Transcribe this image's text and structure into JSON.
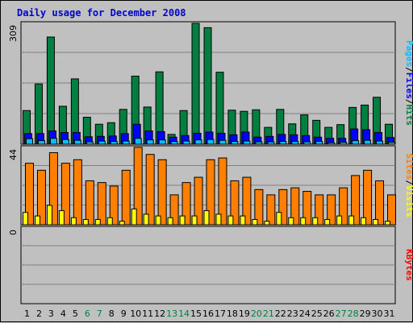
{
  "chart_data": {
    "type": "bar",
    "title": "Daily usage for December 2008",
    "colors": {
      "background": "#c0c0c0",
      "panel": "#c0c0c0",
      "hits": "#008040",
      "files": "#0000ff",
      "pages": "#00c0ff",
      "visits": "#ff8000",
      "sites": "#ffff00",
      "kbytes": "#ff0000",
      "title": "#0000cc",
      "weekend_label": "#008040",
      "weekday_label": "#000000"
    },
    "days": [
      "1",
      "2",
      "3",
      "4",
      "5",
      "6",
      "7",
      "8",
      "9",
      "10",
      "11",
      "12",
      "13",
      "14",
      "15",
      "16",
      "17",
      "18",
      "19",
      "20",
      "21",
      "22",
      "23",
      "24",
      "25",
      "26",
      "27",
      "28",
      "29",
      "30",
      "31"
    ],
    "weekend_days": [
      "6",
      "7",
      "13",
      "14",
      "20",
      "21",
      "27",
      "28"
    ],
    "top_panel": {
      "max_label": "309",
      "ylim": [
        0,
        309
      ],
      "legend": [
        {
          "text": "Pages",
          "color": "#00c0ff"
        },
        {
          "text": "/",
          "color": "#000000"
        },
        {
          "text": "Files",
          "color": "#0000ff"
        },
        {
          "text": "/",
          "color": "#000000"
        },
        {
          "text": "Hits",
          "color": "#008040"
        }
      ],
      "series": [
        {
          "name": "Hits",
          "values": [
            86,
            154,
            274,
            97,
            167,
            69,
            51,
            55,
            89,
            174,
            95,
            185,
            25,
            86,
            309,
            298,
            184,
            87,
            84,
            88,
            43,
            89,
            52,
            75,
            61,
            43,
            50,
            94,
            100,
            120,
            51
          ]
        },
        {
          "name": "Files",
          "values": [
            27,
            27,
            34,
            30,
            30,
            19,
            20,
            21,
            27,
            51,
            34,
            32,
            18,
            22,
            28,
            31,
            28,
            24,
            31,
            18,
            20,
            25,
            24,
            22,
            18,
            15,
            15,
            39,
            37,
            30,
            17
          ]
        },
        {
          "name": "Pages",
          "values": [
            14,
            9,
            15,
            12,
            10,
            6,
            8,
            7,
            8,
            15,
            11,
            11,
            7,
            8,
            11,
            12,
            10,
            7,
            8,
            6,
            6,
            7,
            7,
            6,
            7,
            4,
            5,
            9,
            10,
            8,
            5
          ]
        }
      ]
    },
    "middle_panel": {
      "max_label": "44",
      "ylim": [
        0,
        44
      ],
      "legend": [
        {
          "text": "Sites",
          "color": "#ff8000"
        },
        {
          "text": "/",
          "color": "#000000"
        },
        {
          "text": "Visits",
          "color": "#ffff00"
        }
      ],
      "series": [
        {
          "name": "Visits",
          "values": [
            35,
            31,
            41,
            35,
            37,
            25,
            24,
            22,
            31,
            44,
            40,
            37,
            17,
            24,
            27,
            37,
            38,
            25,
            27,
            20,
            17,
            20,
            21,
            19,
            17,
            17,
            21,
            28,
            31,
            25,
            17
          ]
        },
        {
          "name": "Sites",
          "values": [
            7,
            5,
            11,
            8,
            4,
            3,
            3,
            4,
            2,
            9,
            6,
            5,
            4,
            5,
            5,
            8,
            6,
            5,
            5,
            3,
            2,
            7,
            4,
            4,
            4,
            3,
            5,
            5,
            4,
            3,
            2
          ]
        }
      ]
    },
    "bottom_panel": {
      "max_label": "0",
      "ylim": [
        0,
        1
      ],
      "legend": [
        {
          "text": "KBytes",
          "color": "#ff0000"
        }
      ],
      "series": [
        {
          "name": "KBytes",
          "values": [
            0,
            0,
            0,
            0,
            0,
            0,
            0,
            0,
            0,
            0,
            0,
            0,
            0,
            0,
            0,
            0,
            0,
            0,
            0,
            0,
            0,
            0,
            0,
            0,
            0,
            0,
            0,
            0,
            0,
            0,
            0
          ]
        }
      ]
    }
  }
}
